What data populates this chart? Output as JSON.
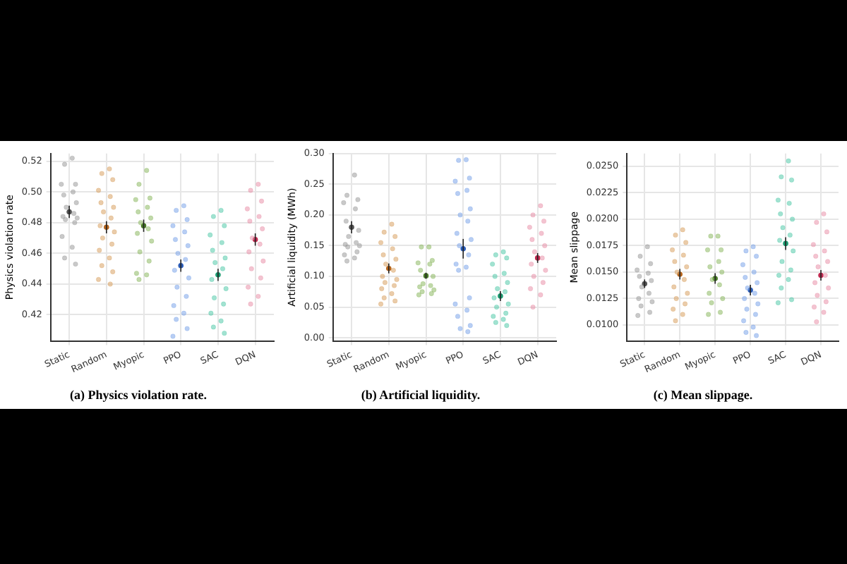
{
  "chart_data": [
    {
      "type": "scatter",
      "title": "(a) Physics violation rate.",
      "ylabel": "Physics violation rate",
      "categories": [
        "Static",
        "Random",
        "Myopic",
        "PPO",
        "SAC",
        "DQN"
      ],
      "ylim": [
        0.403,
        0.525
      ],
      "yticks": [
        {
          "value": 0.42,
          "label": "0.42"
        },
        {
          "value": 0.44,
          "label": "0.44"
        },
        {
          "value": 0.46,
          "label": "0.46"
        },
        {
          "value": 0.48,
          "label": "0.48"
        },
        {
          "value": 0.5,
          "label": "0.50"
        },
        {
          "value": 0.52,
          "label": "0.52"
        }
      ],
      "grid": true,
      "marker": "circle",
      "series": [
        {
          "color": "#9a9a9a",
          "x": [
            "Static",
            "Static",
            "Static",
            "Static",
            "Static",
            "Static",
            "Static",
            "Static",
            "Static",
            "Static",
            "Static",
            "Static",
            "Static",
            "Static",
            "Static",
            "Static",
            "Static"
          ],
          "values": [
            0.522,
            0.518,
            0.505,
            0.505,
            0.5,
            0.498,
            0.493,
            0.49,
            0.486,
            0.484,
            0.483,
            0.482,
            0.48,
            0.471,
            0.464,
            0.457,
            0.453
          ]
        },
        {
          "color": "#d8a060",
          "x": [
            "Random",
            "Random",
            "Random",
            "Random",
            "Random",
            "Random",
            "Random",
            "Random",
            "Random",
            "Random",
            "Random",
            "Random",
            "Random",
            "Random",
            "Random",
            "Random",
            "Random",
            "Random",
            "Random"
          ],
          "values": [
            0.515,
            0.512,
            0.508,
            0.501,
            0.497,
            0.493,
            0.49,
            0.487,
            0.483,
            0.478,
            0.474,
            0.47,
            0.466,
            0.462,
            0.457,
            0.452,
            0.448,
            0.443,
            0.44
          ]
        },
        {
          "color": "#8ab860",
          "x": [
            "Myopic",
            "Myopic",
            "Myopic",
            "Myopic",
            "Myopic",
            "Myopic",
            "Myopic",
            "Myopic",
            "Myopic",
            "Myopic",
            "Myopic",
            "Myopic",
            "Myopic",
            "Myopic",
            "Myopic",
            "Myopic"
          ],
          "values": [
            0.514,
            0.505,
            0.496,
            0.495,
            0.49,
            0.487,
            0.483,
            0.48,
            0.476,
            0.473,
            0.468,
            0.461,
            0.455,
            0.447,
            0.446,
            0.443
          ]
        },
        {
          "color": "#7aa4e8",
          "x": [
            "PPO",
            "PPO",
            "PPO",
            "PPO",
            "PPO",
            "PPO",
            "PPO",
            "PPO",
            "PPO",
            "PPO",
            "PPO",
            "PPO",
            "PPO",
            "PPO",
            "PPO",
            "PPO",
            "PPO",
            "PPO"
          ],
          "values": [
            0.491,
            0.488,
            0.482,
            0.478,
            0.474,
            0.469,
            0.465,
            0.46,
            0.456,
            0.449,
            0.444,
            0.438,
            0.432,
            0.426,
            0.421,
            0.417,
            0.411,
            0.406
          ]
        },
        {
          "color": "#50c8a8",
          "x": [
            "SAC",
            "SAC",
            "SAC",
            "SAC",
            "SAC",
            "SAC",
            "SAC",
            "SAC",
            "SAC",
            "SAC",
            "SAC",
            "SAC",
            "SAC",
            "SAC",
            "SAC",
            "SAC",
            "SAC"
          ],
          "values": [
            0.488,
            0.484,
            0.478,
            0.472,
            0.467,
            0.462,
            0.457,
            0.454,
            0.45,
            0.443,
            0.437,
            0.431,
            0.427,
            0.421,
            0.416,
            0.412,
            0.408
          ]
        },
        {
          "color": "#e890a8",
          "x": [
            "DQN",
            "DQN",
            "DQN",
            "DQN",
            "DQN",
            "DQN",
            "DQN",
            "DQN",
            "DQN",
            "DQN",
            "DQN",
            "DQN",
            "DQN",
            "DQN",
            "DQN",
            "DQN"
          ],
          "values": [
            0.505,
            0.501,
            0.494,
            0.489,
            0.484,
            0.481,
            0.476,
            0.47,
            0.466,
            0.461,
            0.455,
            0.45,
            0.444,
            0.438,
            0.432,
            0.427
          ]
        },
        {
          "colors": [
            "#555555",
            "#b5651d",
            "#4a7a2a",
            "#2a5cb8",
            "#1a9a70",
            "#c02a50"
          ],
          "x": [
            "Static",
            "Random",
            "Myopic",
            "PPO",
            "SAC",
            "DQN"
          ],
          "values": [
            0.487,
            0.477,
            0.478,
            0.452,
            0.446,
            0.469
          ],
          "errors": [
            0.004,
            0.004,
            0.004,
            0.004,
            0.004,
            0.004
          ]
        }
      ]
    },
    {
      "type": "scatter",
      "title": "(b) Artificial liquidity.",
      "ylabel": "Artificial liquidity (MWh)",
      "categories": [
        "Static",
        "Random",
        "Myopic",
        "PPO",
        "SAC",
        "DQN"
      ],
      "ylim": [
        -0.005,
        0.3
      ],
      "yticks": [
        {
          "value": 0,
          "label": "0.00"
        },
        {
          "value": 0.05,
          "label": "0.05"
        },
        {
          "value": 0.1,
          "label": "0.10"
        },
        {
          "value": 0.15,
          "label": "0.15"
        },
        {
          "value": 0.2,
          "label": "0.20"
        },
        {
          "value": 0.25,
          "label": "0.25"
        },
        {
          "value": 0.3,
          "label": "0.30"
        }
      ],
      "grid": true,
      "marker": "circle",
      "series": [
        {
          "color": "#9a9a9a",
          "x": [
            "Static",
            "Static",
            "Static",
            "Static",
            "Static",
            "Static",
            "Static",
            "Static",
            "Static",
            "Static",
            "Static",
            "Static",
            "Static",
            "Static",
            "Static",
            "Static"
          ],
          "values": [
            0.265,
            0.232,
            0.225,
            0.22,
            0.21,
            0.19,
            0.175,
            0.165,
            0.155,
            0.152,
            0.15,
            0.148,
            0.14,
            0.135,
            0.13,
            0.125
          ]
        },
        {
          "color": "#d8a060",
          "x": [
            "Random",
            "Random",
            "Random",
            "Random",
            "Random",
            "Random",
            "Random",
            "Random",
            "Random",
            "Random",
            "Random",
            "Random",
            "Random",
            "Random",
            "Random",
            "Random",
            "Random",
            "Random"
          ],
          "values": [
            0.185,
            0.172,
            0.165,
            0.155,
            0.145,
            0.135,
            0.128,
            0.12,
            0.11,
            0.1,
            0.095,
            0.09,
            0.085,
            0.08,
            0.072,
            0.065,
            0.06,
            0.055
          ]
        },
        {
          "color": "#8ab860",
          "x": [
            "Myopic",
            "Myopic",
            "Myopic",
            "Myopic",
            "Myopic",
            "Myopic",
            "Myopic",
            "Myopic",
            "Myopic",
            "Myopic",
            "Myopic",
            "Myopic",
            "Myopic",
            "Myopic"
          ],
          "values": [
            0.148,
            0.148,
            0.126,
            0.122,
            0.12,
            0.11,
            0.1,
            0.088,
            0.085,
            0.083,
            0.078,
            0.075,
            0.072,
            0.07
          ]
        },
        {
          "color": "#7aa4e8",
          "x": [
            "PPO",
            "PPO",
            "PPO",
            "PPO",
            "PPO",
            "PPO",
            "PPO",
            "PPO",
            "PPO",
            "PPO",
            "PPO",
            "PPO",
            "PPO",
            "PPO",
            "PPO",
            "PPO",
            "PPO",
            "PPO",
            "PPO",
            "PPO",
            "PPO",
            "PPO",
            "PPO"
          ],
          "values": [
            0.29,
            0.289,
            0.26,
            0.255,
            0.24,
            0.235,
            0.21,
            0.2,
            0.19,
            0.17,
            0.16,
            0.15,
            0.135,
            0.12,
            0.115,
            0.11,
            0.065,
            0.055,
            0.045,
            0.035,
            0.02,
            0.015,
            0.01
          ]
        },
        {
          "color": "#50c8a8",
          "x": [
            "SAC",
            "SAC",
            "SAC",
            "SAC",
            "SAC",
            "SAC",
            "SAC",
            "SAC",
            "SAC",
            "SAC",
            "SAC",
            "SAC",
            "SAC",
            "SAC",
            "SAC",
            "SAC",
            "SAC"
          ],
          "values": [
            0.14,
            0.135,
            0.13,
            0.12,
            0.105,
            0.1,
            0.09,
            0.08,
            0.075,
            0.065,
            0.055,
            0.05,
            0.04,
            0.035,
            0.03,
            0.025,
            0.02
          ]
        },
        {
          "color": "#e890a8",
          "x": [
            "DQN",
            "DQN",
            "DQN",
            "DQN",
            "DQN",
            "DQN",
            "DQN",
            "DQN",
            "DQN",
            "DQN",
            "DQN",
            "DQN",
            "DQN",
            "DQN",
            "DQN",
            "DQN"
          ],
          "values": [
            0.215,
            0.2,
            0.19,
            0.18,
            0.17,
            0.16,
            0.15,
            0.14,
            0.13,
            0.12,
            0.11,
            0.1,
            0.09,
            0.08,
            0.07,
            0.05
          ]
        },
        {
          "colors": [
            "#555555",
            "#b5651d",
            "#4a7a2a",
            "#2a5cb8",
            "#1a9a70",
            "#c02a50"
          ],
          "x": [
            "Static",
            "Random",
            "Myopic",
            "PPO",
            "SAC",
            "DQN"
          ],
          "values": [
            0.18,
            0.113,
            0.101,
            0.145,
            0.068,
            0.13
          ],
          "errors": [
            0.01,
            0.008,
            0.005,
            0.016,
            0.008,
            0.008
          ]
        }
      ]
    },
    {
      "type": "scatter",
      "title": "(c) Mean slippage.",
      "ylabel": "Mean slippage",
      "categories": [
        "Static",
        "Random",
        "Myopic",
        "PPO",
        "SAC",
        "DQN"
      ],
      "ylim": [
        0.0085,
        0.0262
      ],
      "yticks": [
        {
          "value": 0.01,
          "label": "0.0100"
        },
        {
          "value": 0.0125,
          "label": "0.0125"
        },
        {
          "value": 0.015,
          "label": "0.0150"
        },
        {
          "value": 0.0175,
          "label": "0.0175"
        },
        {
          "value": 0.02,
          "label": "0.0200"
        },
        {
          "value": 0.0225,
          "label": "0.0225"
        },
        {
          "value": 0.025,
          "label": "0.0250"
        }
      ],
      "grid": true,
      "marker": "circle",
      "series": [
        {
          "color": "#9a9a9a",
          "x": [
            "Static",
            "Static",
            "Static",
            "Static",
            "Static",
            "Static",
            "Static",
            "Static",
            "Static",
            "Static",
            "Static",
            "Static",
            "Static",
            "Static"
          ],
          "values": [
            0.0174,
            0.0165,
            0.0158,
            0.0152,
            0.0149,
            0.0146,
            0.0142,
            0.0136,
            0.013,
            0.0125,
            0.0122,
            0.0118,
            0.0112,
            0.0109
          ]
        },
        {
          "color": "#d8a060",
          "x": [
            "Random",
            "Random",
            "Random",
            "Random",
            "Random",
            "Random",
            "Random",
            "Random",
            "Random",
            "Random",
            "Random",
            "Random",
            "Random",
            "Random",
            "Random",
            "Random"
          ],
          "values": [
            0.019,
            0.0185,
            0.0178,
            0.0171,
            0.0166,
            0.016,
            0.0155,
            0.015,
            0.0143,
            0.0136,
            0.013,
            0.0125,
            0.012,
            0.0115,
            0.011,
            0.0104
          ]
        },
        {
          "color": "#8ab860",
          "x": [
            "Myopic",
            "Myopic",
            "Myopic",
            "Myopic",
            "Myopic",
            "Myopic",
            "Myopic",
            "Myopic",
            "Myopic",
            "Myopic",
            "Myopic",
            "Myopic",
            "Myopic",
            "Myopic"
          ],
          "values": [
            0.0184,
            0.0184,
            0.0171,
            0.0171,
            0.016,
            0.0155,
            0.015,
            0.0143,
            0.0138,
            0.013,
            0.0125,
            0.0121,
            0.0112,
            0.011
          ]
        },
        {
          "color": "#7aa4e8",
          "x": [
            "PPO",
            "PPO",
            "PPO",
            "PPO",
            "PPO",
            "PPO",
            "PPO",
            "PPO",
            "PPO",
            "PPO",
            "PPO",
            "PPO",
            "PPO",
            "PPO",
            "PPO",
            "PPO",
            "PPO"
          ],
          "values": [
            0.0174,
            0.017,
            0.0165,
            0.0157,
            0.015,
            0.0145,
            0.014,
            0.0135,
            0.013,
            0.0125,
            0.012,
            0.0115,
            0.011,
            0.0104,
            0.0098,
            0.0093,
            0.009
          ]
        },
        {
          "color": "#50c8a8",
          "x": [
            "SAC",
            "SAC",
            "SAC",
            "SAC",
            "SAC",
            "SAC",
            "SAC",
            "SAC",
            "SAC",
            "SAC",
            "SAC",
            "SAC",
            "SAC",
            "SAC",
            "SAC",
            "SAC",
            "SAC",
            "SAC"
          ],
          "values": [
            0.0255,
            0.024,
            0.0237,
            0.0218,
            0.0215,
            0.0205,
            0.02,
            0.0192,
            0.0185,
            0.018,
            0.017,
            0.016,
            0.0152,
            0.0147,
            0.0143,
            0.0135,
            0.0124,
            0.0121
          ]
        },
        {
          "color": "#e890a8",
          "x": [
            "DQN",
            "DQN",
            "DQN",
            "DQN",
            "DQN",
            "DQN",
            "DQN",
            "DQN",
            "DQN",
            "DQN",
            "DQN",
            "DQN",
            "DQN",
            "DQN",
            "DQN",
            "DQN"
          ],
          "values": [
            0.0205,
            0.0197,
            0.0188,
            0.0176,
            0.017,
            0.0165,
            0.016,
            0.0155,
            0.0147,
            0.014,
            0.0135,
            0.0128,
            0.0122,
            0.0117,
            0.0112,
            0.0103
          ]
        },
        {
          "colors": [
            "#555555",
            "#b5651d",
            "#4a7a2a",
            "#2a5cb8",
            "#1a9a70",
            "#c02a50"
          ],
          "x": [
            "Static",
            "Random",
            "Myopic",
            "PPO",
            "SAC",
            "DQN"
          ],
          "values": [
            0.0139,
            0.0148,
            0.0144,
            0.0133,
            0.0177,
            0.0147
          ],
          "errors": [
            0.0004,
            0.0005,
            0.0005,
            0.0005,
            0.0006,
            0.0005
          ]
        }
      ]
    }
  ]
}
